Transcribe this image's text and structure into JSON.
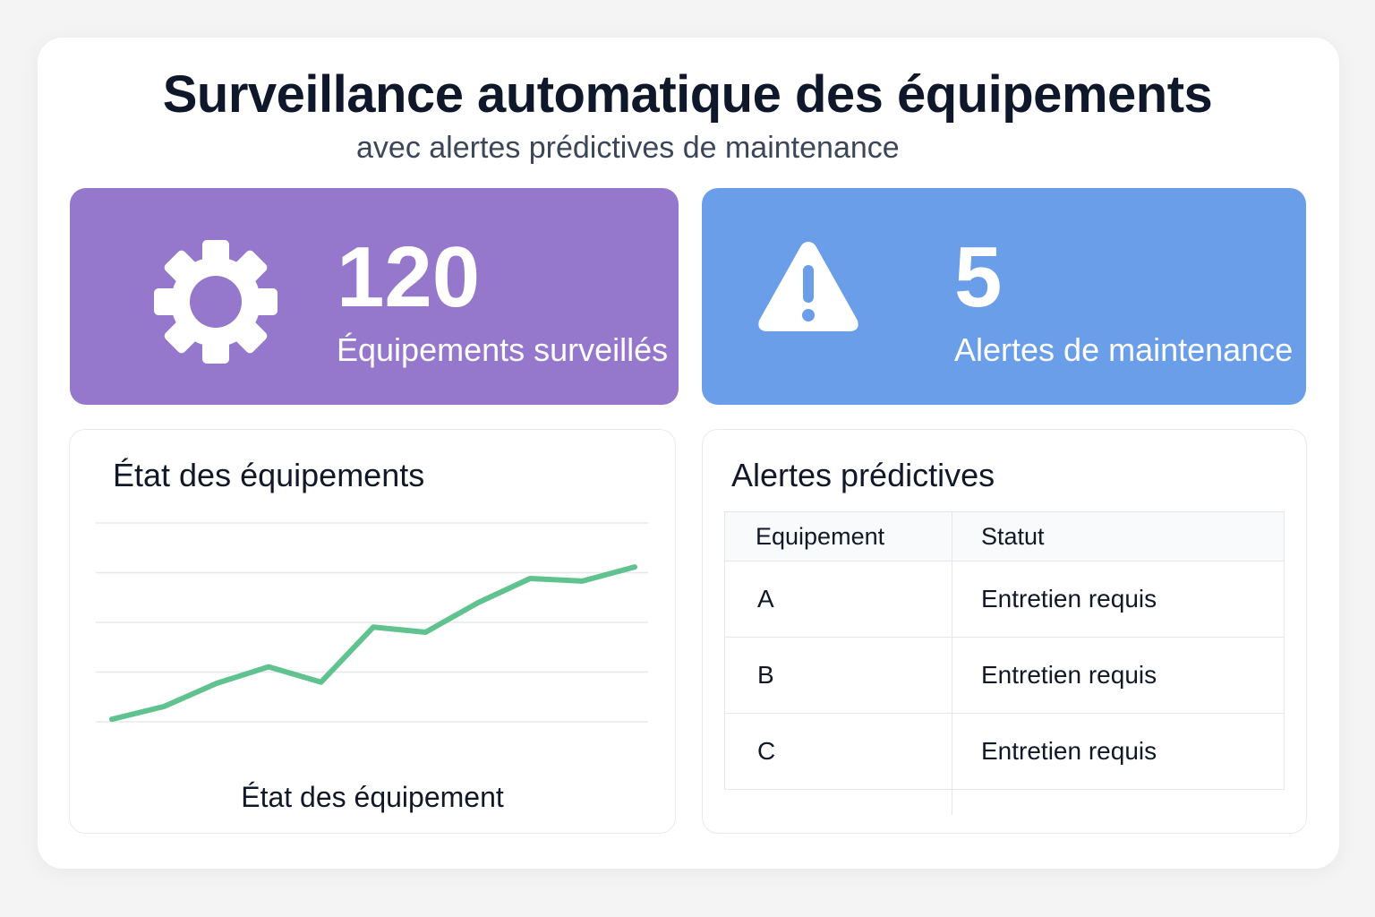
{
  "header": {
    "title": "Surveillance automatique des équipements",
    "subtitle": "avec alertes prédictives de maintenance"
  },
  "stats": [
    {
      "value": "120",
      "label": "Équipements surveillés",
      "icon": "gear-icon",
      "color": "#9577cc"
    },
    {
      "value": "5",
      "label": "Alertes de maintenance",
      "icon": "warning-icon",
      "color": "#6b9ee9"
    }
  ],
  "chart_panel": {
    "title": "État des équipements",
    "caption": "État des équipement"
  },
  "chart_data": {
    "type": "line",
    "title": "État des équipements",
    "xlabel": "État des équipement",
    "ylabel": "",
    "x": [
      0,
      1,
      2,
      3,
      4,
      5,
      6,
      7,
      8,
      9,
      10
    ],
    "series": [
      {
        "values": [
          2,
          12,
          30,
          43,
          31,
          74,
          70,
          93,
          112,
          110,
          121
        ]
      }
    ],
    "ylim": [
      0,
      140
    ],
    "grid": true,
    "color": "#5fc28f"
  },
  "alerts_panel": {
    "title": "Alertes prédictives",
    "columns": [
      "Equipement",
      "Statut"
    ],
    "rows": [
      [
        "A",
        "Entretien requis"
      ],
      [
        "B",
        "Entretien requis"
      ],
      [
        "C",
        "Entretien requis"
      ]
    ]
  }
}
